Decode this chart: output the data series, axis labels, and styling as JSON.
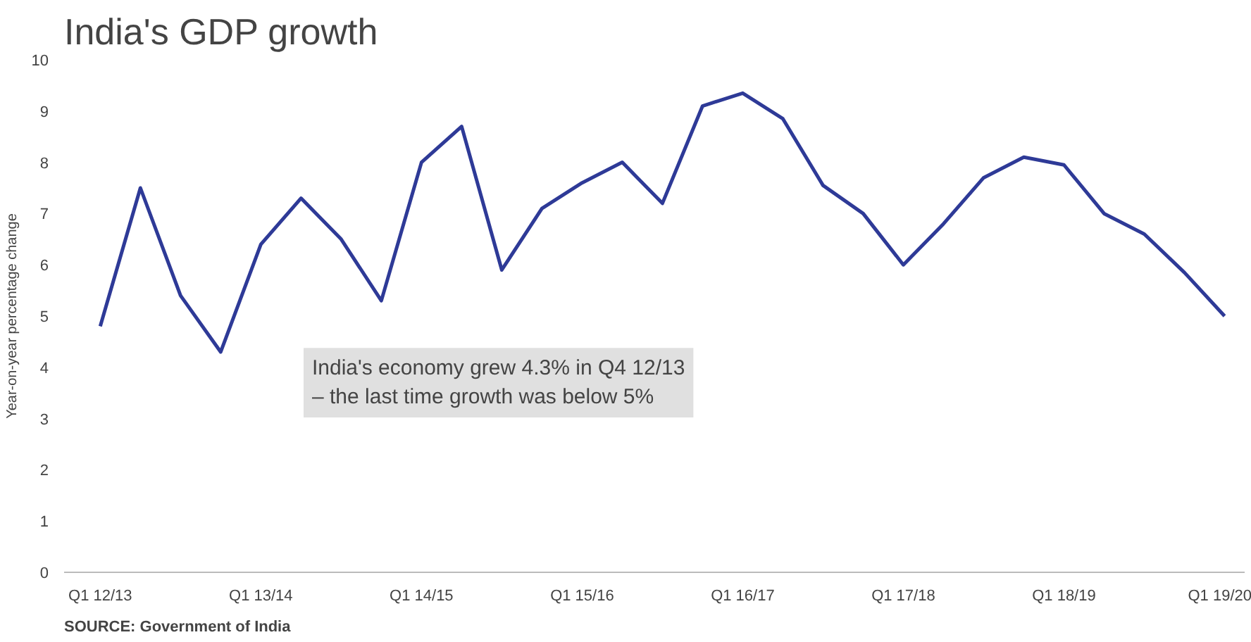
{
  "chart_data": {
    "type": "line",
    "title": "India's GDP growth",
    "ylabel": "Year-on-year percentage change",
    "categories": [
      "Q1 12/13",
      null,
      null,
      null,
      "Q1 13/14",
      null,
      null,
      null,
      "Q1 14/15",
      null,
      null,
      null,
      "Q1 15/16",
      null,
      null,
      null,
      "Q1 16/17",
      null,
      null,
      null,
      "Q1 17/18",
      null,
      null,
      null,
      "Q1 18/19",
      null,
      null,
      null,
      "Q1 19/20"
    ],
    "series": [
      {
        "color": "#2e3a97",
        "values": [
          4.8,
          7.5,
          5.4,
          4.3,
          6.4,
          7.3,
          6.5,
          5.3,
          8.0,
          8.7,
          5.9,
          7.1,
          7.6,
          8.0,
          7.2,
          9.1,
          9.35,
          8.85,
          7.55,
          7.0,
          6.0,
          6.8,
          7.7,
          8.1,
          7.95,
          7.0,
          6.6,
          5.85,
          5.0
        ]
      }
    ],
    "ylim": [
      0,
      10
    ],
    "yticks": [
      0,
      1,
      2,
      3,
      4,
      5,
      6,
      7,
      8,
      9,
      10
    ],
    "grid": false,
    "marker": "none",
    "line_style": "solid",
    "annotations": [
      "India's economy grew 4.3% in Q4 12/13\n– the last time growth was below 5%",
      "SOURCE: Government of India"
    ]
  }
}
